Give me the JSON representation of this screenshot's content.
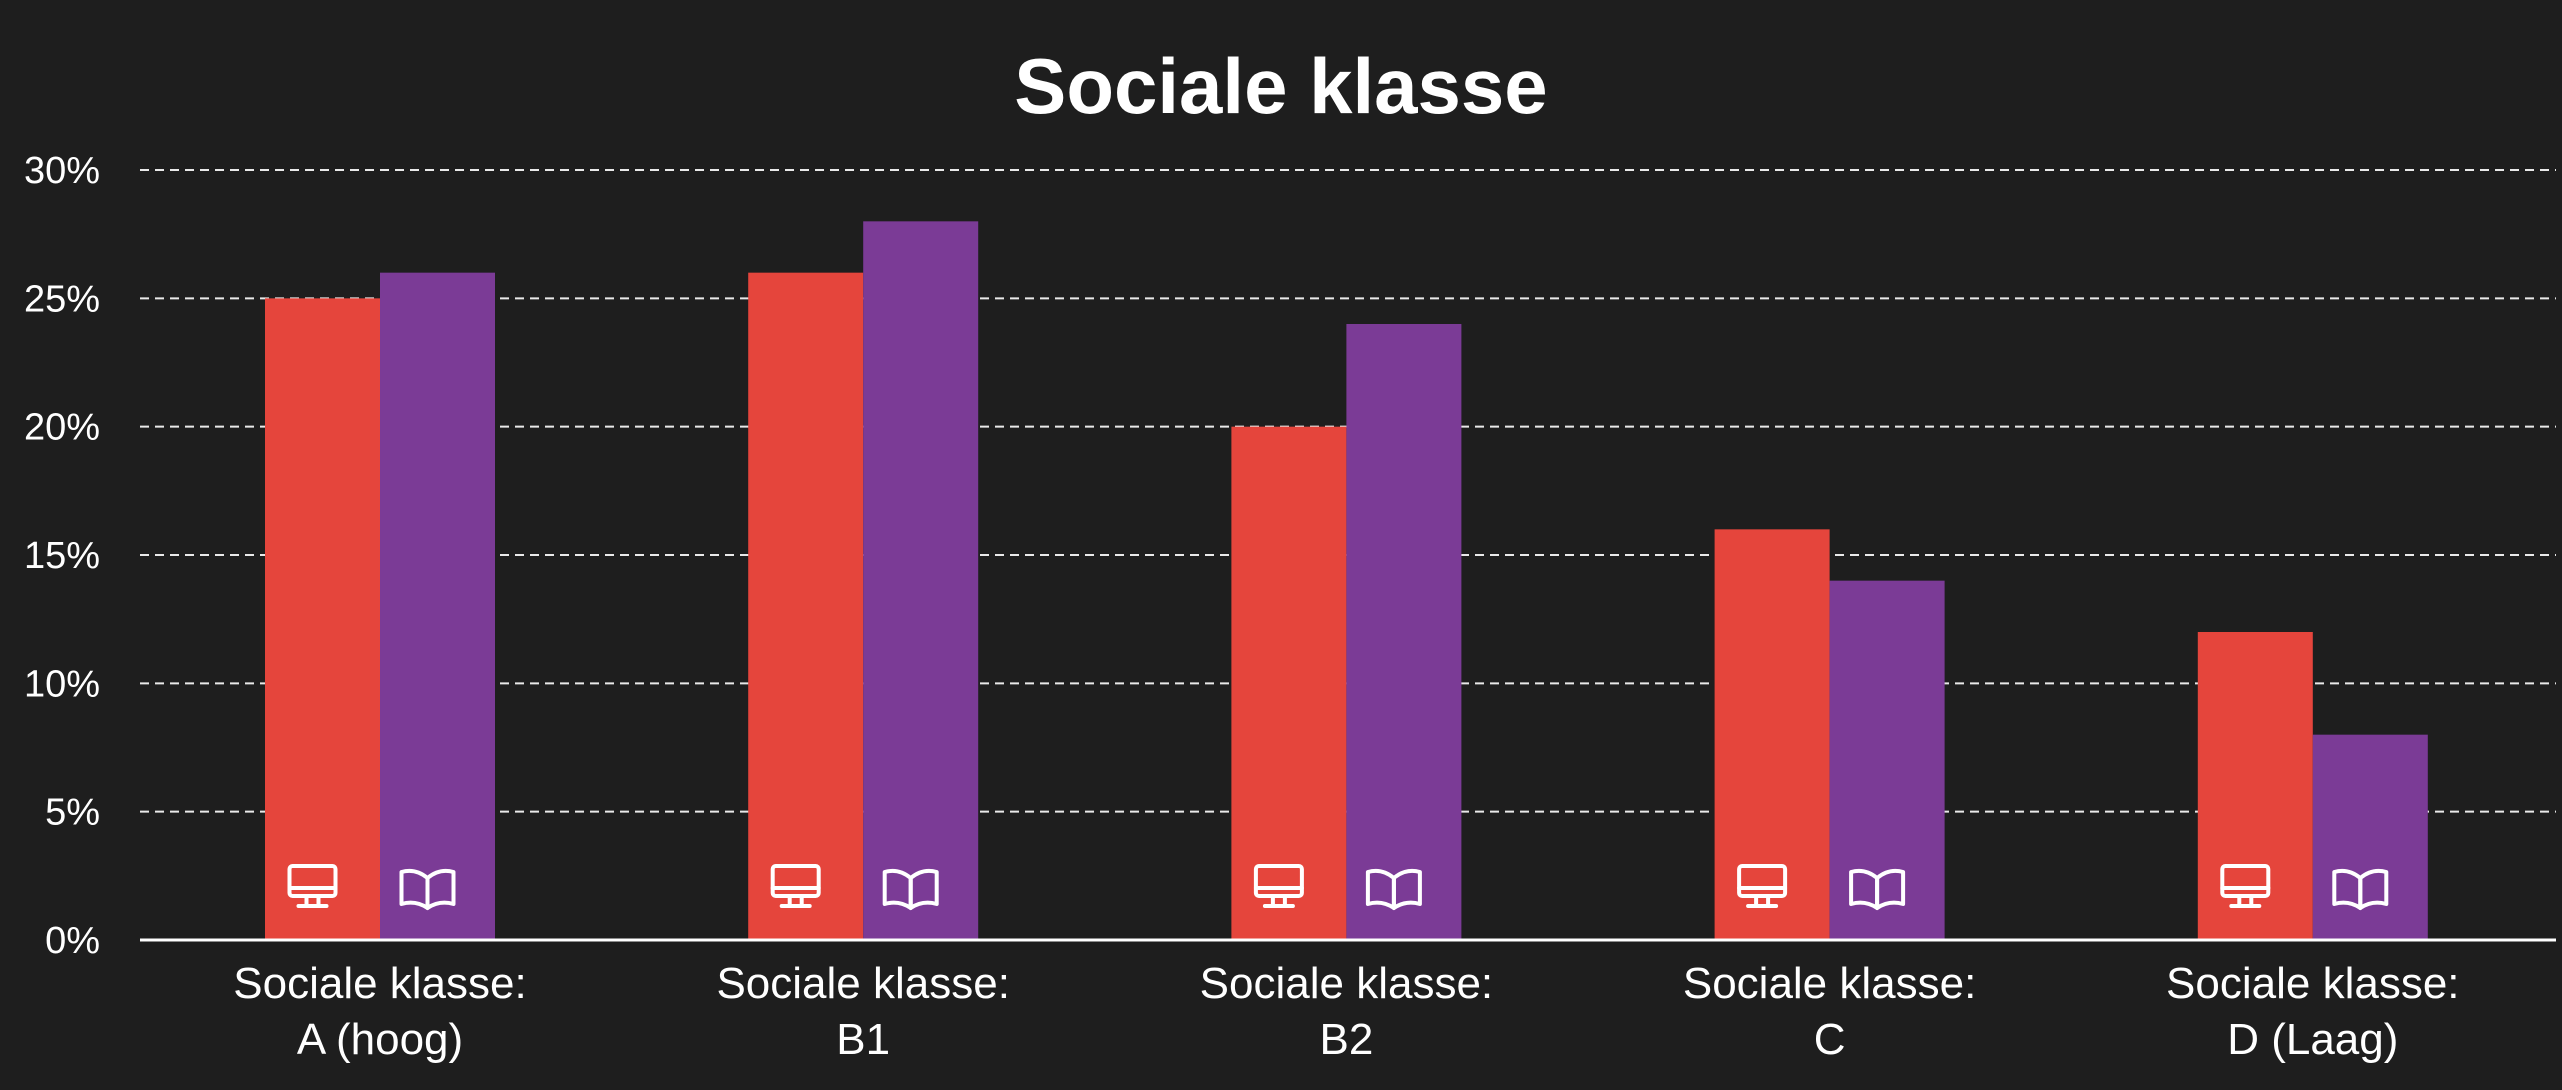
{
  "chart_data": {
    "type": "bar",
    "title": "Sociale klasse",
    "categories": [
      [
        "Sociale klasse:",
        "A (hoog)"
      ],
      [
        "Sociale klasse:",
        "B1"
      ],
      [
        "Sociale klasse:",
        "B2"
      ],
      [
        "Sociale klasse:",
        "C"
      ],
      [
        "Sociale klasse:",
        "D (Laag)"
      ]
    ],
    "series": [
      {
        "icon": "monitor-icon",
        "color": "#e5453c",
        "values": [
          25,
          26,
          20,
          16,
          12
        ]
      },
      {
        "icon": "open-book-icon",
        "color": "#7b3b96",
        "values": [
          26,
          28,
          24,
          14,
          8
        ]
      }
    ],
    "ylim": [
      0,
      30
    ],
    "yticks": [
      0,
      5,
      10,
      15,
      20,
      25,
      30
    ],
    "ytick_labels": [
      "0%",
      "5%",
      "10%",
      "15%",
      "20%",
      "25%",
      "30%"
    ],
    "grid": true,
    "background": "#1e1e1e"
  }
}
